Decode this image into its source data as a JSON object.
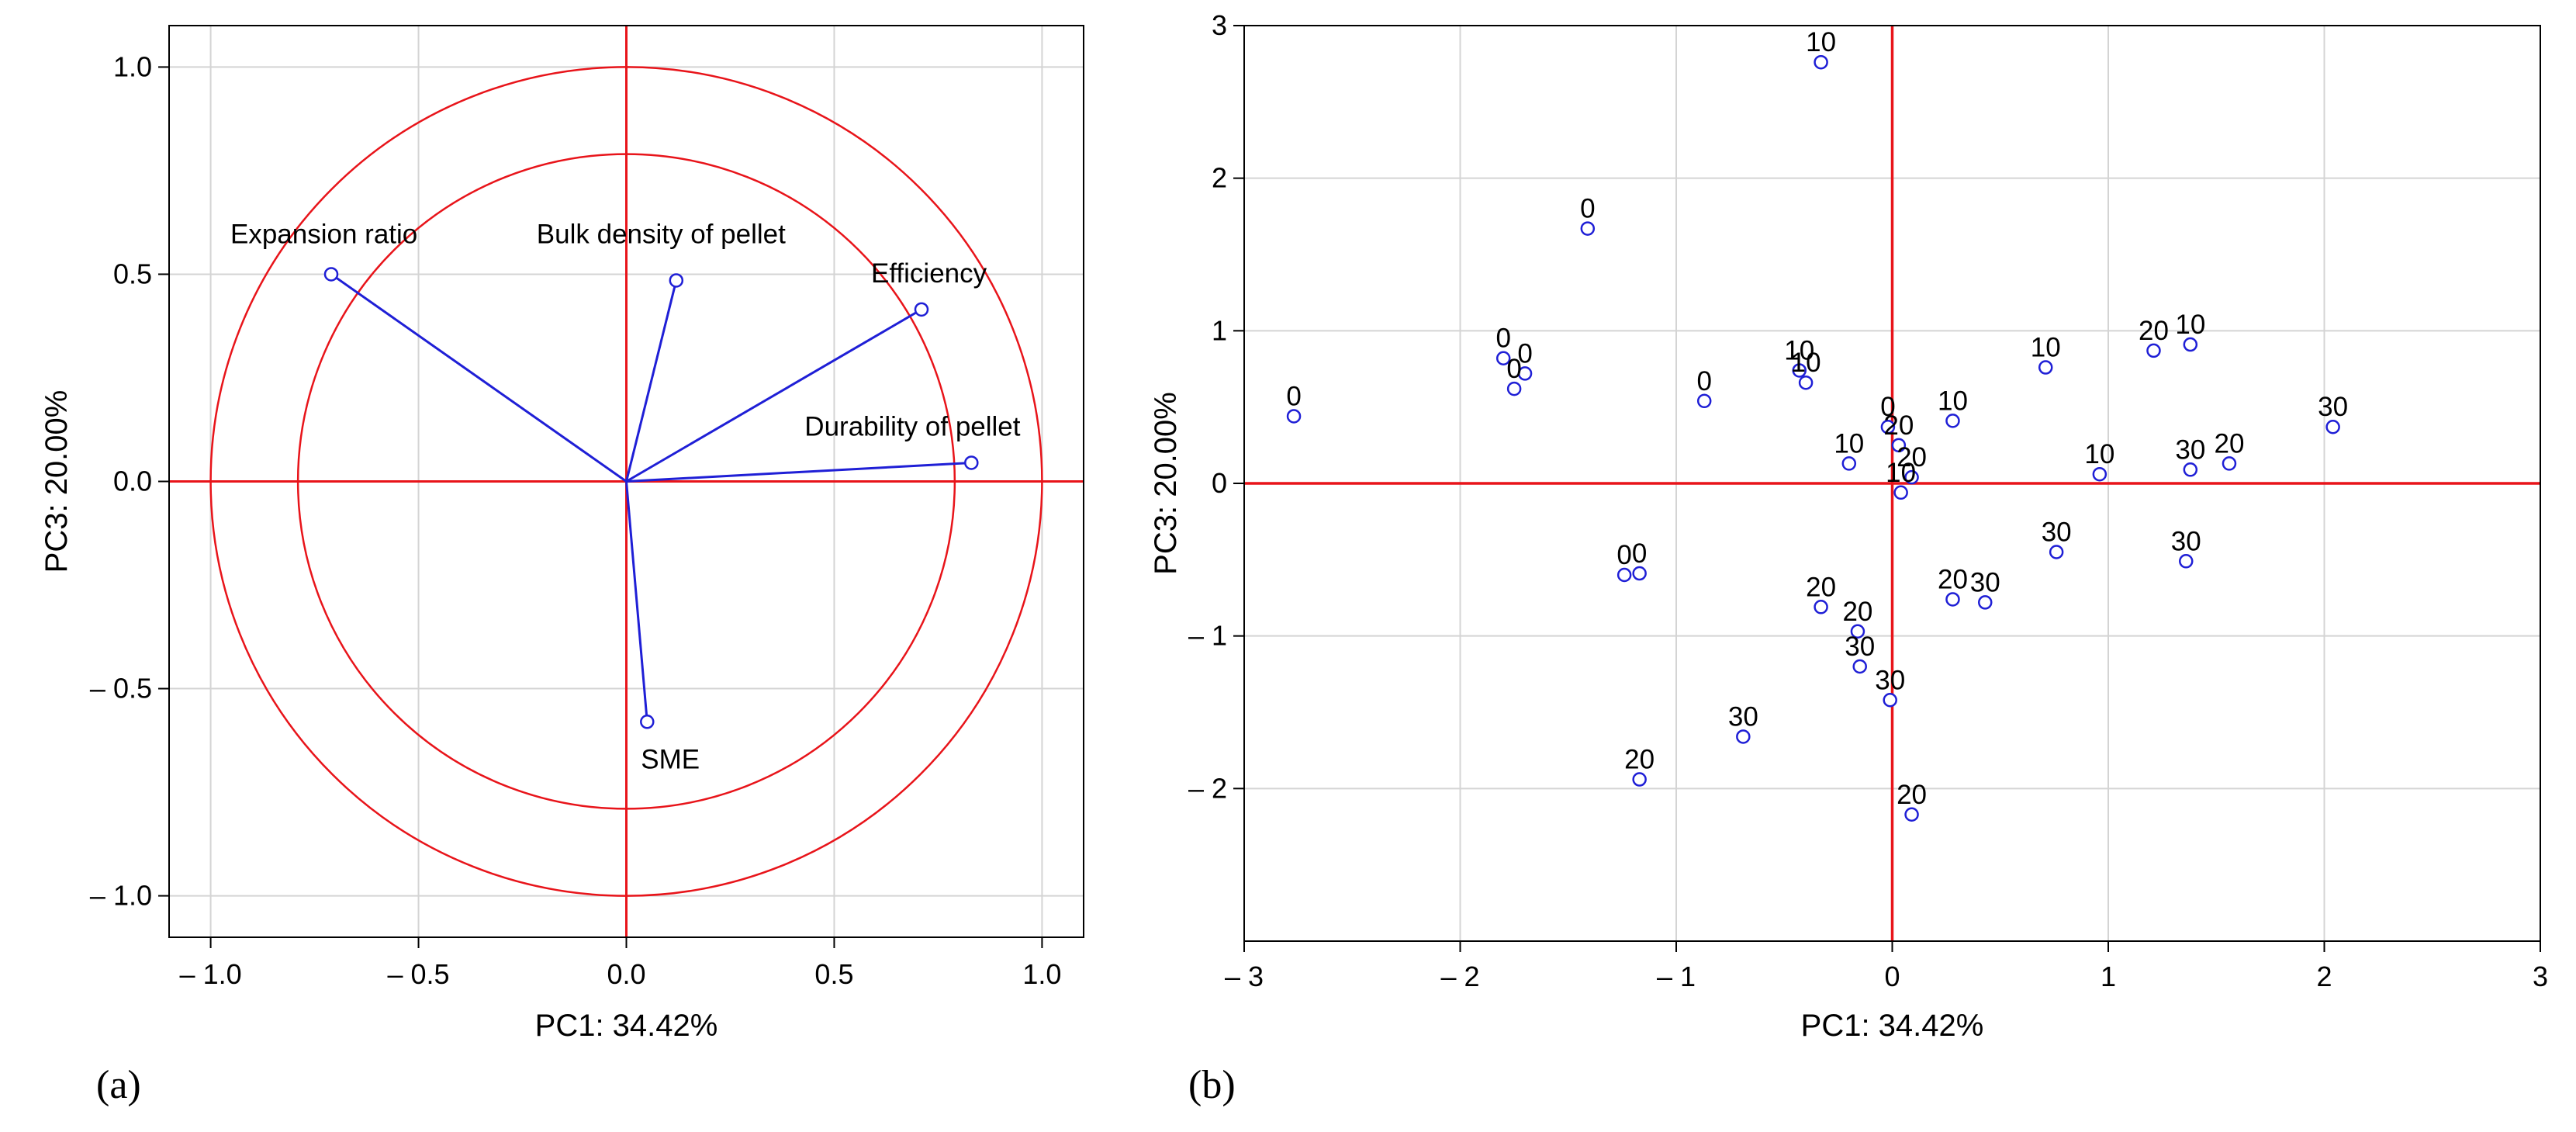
{
  "chart_data": [
    {
      "type": "scatter",
      "subtype": "loading-plot",
      "panel_label": "(a)",
      "xlabel": "PC1: 34.42%",
      "ylabel": "PC3: 20.00%",
      "xlim": [
        -1.1,
        1.1
      ],
      "ylim": [
        -1.1,
        1.1
      ],
      "xticks": [
        -1.0,
        -0.5,
        0.0,
        0.5,
        1.0
      ],
      "xtick_labels": [
        "– 1.0",
        "– 0.5",
        "0.0",
        "0.5",
        "1.0"
      ],
      "yticks": [
        -1.0,
        -0.5,
        0.0,
        0.5,
        1.0
      ],
      "ytick_labels": [
        "– 1.0",
        "– 0.5",
        "0.0",
        "0.5",
        "1.0"
      ],
      "grid": true,
      "circles": [
        1.0,
        0.79
      ],
      "colors": {
        "vector": "#1f1fd6",
        "circle": "#e8141a",
        "axis": "#e8141a",
        "grid": "#d4d4d4"
      },
      "vectors": [
        {
          "name": "Expansion ratio",
          "x": -0.71,
          "y": 0.5
        },
        {
          "name": "Bulk density of pellet",
          "x": 0.12,
          "y": 0.485
        },
        {
          "name": "Efficiency",
          "x": 0.71,
          "y": 0.415
        },
        {
          "name": "Durability of pellet",
          "x": 0.83,
          "y": 0.045
        },
        {
          "name": "SME",
          "x": 0.05,
          "y": -0.58
        }
      ]
    },
    {
      "type": "scatter",
      "panel_label": "(b)",
      "xlabel": "PC1: 34.42%",
      "ylabel": "PC3: 20.00%",
      "xlim": [
        -3,
        3
      ],
      "ylim": [
        -3,
        3
      ],
      "xticks": [
        -3,
        -2,
        -1,
        0,
        1,
        2,
        3
      ],
      "xtick_labels": [
        "– 3",
        "– 2",
        "– 1",
        "0",
        "1",
        "2",
        "3"
      ],
      "yticks": [
        -2,
        -1,
        0,
        1,
        2,
        3
      ],
      "ytick_labels": [
        "– 2",
        "– 1",
        "0",
        "1",
        "2",
        "3"
      ],
      "grid": true,
      "colors": {
        "point": "#1f1fd6",
        "axis": "#e8141a",
        "grid": "#d4d4d4"
      },
      "points": [
        {
          "label": "10",
          "x": -0.33,
          "y": 2.76
        },
        {
          "label": "0",
          "x": -1.41,
          "y": 1.67
        },
        {
          "label": "0",
          "x": -1.8,
          "y": 0.82
        },
        {
          "label": "0",
          "x": -1.7,
          "y": 0.72
        },
        {
          "label": "0",
          "x": -1.75,
          "y": 0.62
        },
        {
          "label": "0",
          "x": -2.77,
          "y": 0.44
        },
        {
          "label": "0",
          "x": -0.87,
          "y": 0.54
        },
        {
          "label": "10",
          "x": -0.43,
          "y": 0.74
        },
        {
          "label": "10",
          "x": -0.4,
          "y": 0.66
        },
        {
          "label": "0",
          "x": -0.02,
          "y": 0.37
        },
        {
          "label": "20",
          "x": 0.03,
          "y": 0.25
        },
        {
          "label": "10",
          "x": 0.28,
          "y": 0.41
        },
        {
          "label": "10",
          "x": -0.2,
          "y": 0.13
        },
        {
          "label": "20",
          "x": 0.09,
          "y": 0.04
        },
        {
          "label": "10",
          "x": 0.04,
          "y": -0.06
        },
        {
          "label": "10",
          "x": 0.71,
          "y": 0.76
        },
        {
          "label": "20",
          "x": 1.21,
          "y": 0.87
        },
        {
          "label": "10",
          "x": 1.38,
          "y": 0.91
        },
        {
          "label": "10",
          "x": 0.96,
          "y": 0.06
        },
        {
          "label": "30",
          "x": 1.38,
          "y": 0.09
        },
        {
          "label": "20",
          "x": 1.56,
          "y": 0.13
        },
        {
          "label": "30",
          "x": 2.04,
          "y": 0.37
        },
        {
          "label": "30",
          "x": 0.76,
          "y": -0.45
        },
        {
          "label": "30",
          "x": 1.36,
          "y": -0.51
        },
        {
          "label": "0",
          "x": -1.24,
          "y": -0.6
        },
        {
          "label": "0",
          "x": -1.17,
          "y": -0.59
        },
        {
          "label": "20",
          "x": -0.33,
          "y": -0.81
        },
        {
          "label": "20",
          "x": -0.16,
          "y": -0.97
        },
        {
          "label": "20",
          "x": 0.28,
          "y": -0.76
        },
        {
          "label": "30",
          "x": 0.43,
          "y": -0.78
        },
        {
          "label": "30",
          "x": -0.15,
          "y": -1.2
        },
        {
          "label": "30",
          "x": -0.01,
          "y": -1.42
        },
        {
          "label": "30",
          "x": -0.69,
          "y": -1.66
        },
        {
          "label": "20",
          "x": -1.17,
          "y": -1.94
        },
        {
          "label": "20",
          "x": 0.09,
          "y": -2.17
        }
      ]
    }
  ]
}
